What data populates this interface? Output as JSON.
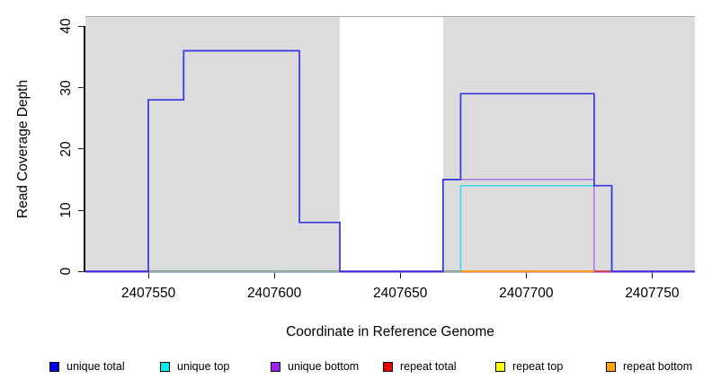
{
  "x_axis": {
    "label": "Coordinate in Reference Genome"
  },
  "y_axis": {
    "label": "Read Coverage Depth"
  },
  "legend": {
    "items": [
      {
        "label": "unique total",
        "color": "#0000EE"
      },
      {
        "label": "unique top",
        "color": "#00EEEE"
      },
      {
        "label": "unique bottom",
        "color": "#A020F0"
      },
      {
        "label": "repeat total",
        "color": "#EE0000"
      },
      {
        "label": "repeat top",
        "color": "#FFFF00"
      },
      {
        "label": "repeat bottom",
        "color": "#FFA500"
      }
    ]
  },
  "chart_data": {
    "type": "line",
    "subtype": "step-coverage",
    "xlabel": "Coordinate in Reference Genome",
    "ylabel": "Read Coverage Depth",
    "xlim": [
      2407525,
      2407767
    ],
    "ylim": [
      0,
      41.5
    ],
    "x_ticks": [
      2407550,
      2407600,
      2407650,
      2407700,
      2407750
    ],
    "y_ticks": [
      0,
      10,
      20,
      30,
      40
    ],
    "grid": false,
    "legend_position": "bottom",
    "plot_background": "#DCDCDC",
    "gap_region": {
      "x0": 2407626,
      "x1": 2407667,
      "color": "#FFFFFF"
    },
    "series": [
      {
        "name": "unique total",
        "color": "#0000EE",
        "steps": [
          [
            2407525,
            0
          ],
          [
            2407550,
            28
          ],
          [
            2407564,
            36
          ],
          [
            2407610,
            8
          ],
          [
            2407626,
            0
          ],
          [
            2407667,
            15
          ],
          [
            2407674,
            29
          ],
          [
            2407727,
            14
          ],
          [
            2407734,
            0
          ],
          [
            2407767,
            0
          ]
        ]
      },
      {
        "name": "unique top",
        "color": "#00EEEE",
        "steps": [
          [
            2407550,
            0
          ],
          [
            2407674,
            14
          ],
          [
            2407734,
            0
          ]
        ]
      },
      {
        "name": "unique bottom",
        "color": "#A020F0",
        "steps": [
          [
            2407525,
            0
          ],
          [
            2407667,
            15
          ],
          [
            2407727,
            0
          ],
          [
            2407767,
            0
          ]
        ]
      },
      {
        "name": "repeat total",
        "color": "#EE0000",
        "steps": [
          [
            2407727,
            0
          ],
          [
            2407734,
            0
          ]
        ]
      },
      {
        "name": "repeat top",
        "color": "#FFFF00",
        "steps": [
          [
            2407550,
            0
          ],
          [
            2407626,
            0
          ]
        ]
      },
      {
        "name": "repeat bottom",
        "color": "#FFA500",
        "steps": [
          [
            2407674,
            0
          ],
          [
            2407727,
            0
          ]
        ]
      }
    ],
    "render_polylines": [
      {
        "name": "unique-bottom-baseline",
        "color": "#A060E0",
        "width": 2.6,
        "points": [
          [
            2407525,
            0
          ],
          [
            2407767,
            0
          ]
        ]
      },
      {
        "name": "unique-bottom-box",
        "color": "#B06FE0",
        "width": 1.5,
        "points": [
          [
            2407667,
            0
          ],
          [
            2407667,
            15
          ],
          [
            2407727,
            15
          ],
          [
            2407727,
            0
          ]
        ]
      },
      {
        "name": "top-strand-overlap-left",
        "color": "#7CC87C",
        "width": 1.6,
        "points": [
          [
            2407550,
            0
          ],
          [
            2407626,
            0
          ]
        ]
      },
      {
        "name": "top-strand-overlap-right",
        "color": "#7CC87C",
        "width": 1.6,
        "points": [
          [
            2407667,
            0
          ],
          [
            2407674,
            0
          ]
        ]
      },
      {
        "name": "repeat-bottom-line",
        "color": "#FFA500",
        "width": 2.0,
        "points": [
          [
            2407674,
            0
          ],
          [
            2407727,
            0
          ]
        ]
      },
      {
        "name": "repeat-total-line",
        "color": "#D94060",
        "width": 2.0,
        "points": [
          [
            2407727,
            0
          ],
          [
            2407734,
            0
          ]
        ]
      },
      {
        "name": "unique-top-box",
        "color": "#35D8E8",
        "width": 1.5,
        "points": [
          [
            2407674,
            0
          ],
          [
            2407674,
            14
          ],
          [
            2407734,
            14
          ],
          [
            2407734,
            0
          ]
        ]
      },
      {
        "name": "unique-total-outline",
        "color": "#3434E0",
        "width": 1.7,
        "points": [
          [
            2407525,
            0
          ],
          [
            2407550,
            0
          ],
          [
            2407550,
            28
          ],
          [
            2407564,
            28
          ],
          [
            2407564,
            36
          ],
          [
            2407610,
            36
          ],
          [
            2407610,
            8
          ],
          [
            2407626,
            8
          ],
          [
            2407626,
            0
          ],
          [
            2407667,
            0
          ],
          [
            2407667,
            15
          ],
          [
            2407674,
            15
          ],
          [
            2407674,
            29
          ],
          [
            2407727,
            29
          ],
          [
            2407727,
            14
          ],
          [
            2407734,
            14
          ],
          [
            2407734,
            0
          ],
          [
            2407767,
            0
          ]
        ]
      }
    ]
  }
}
